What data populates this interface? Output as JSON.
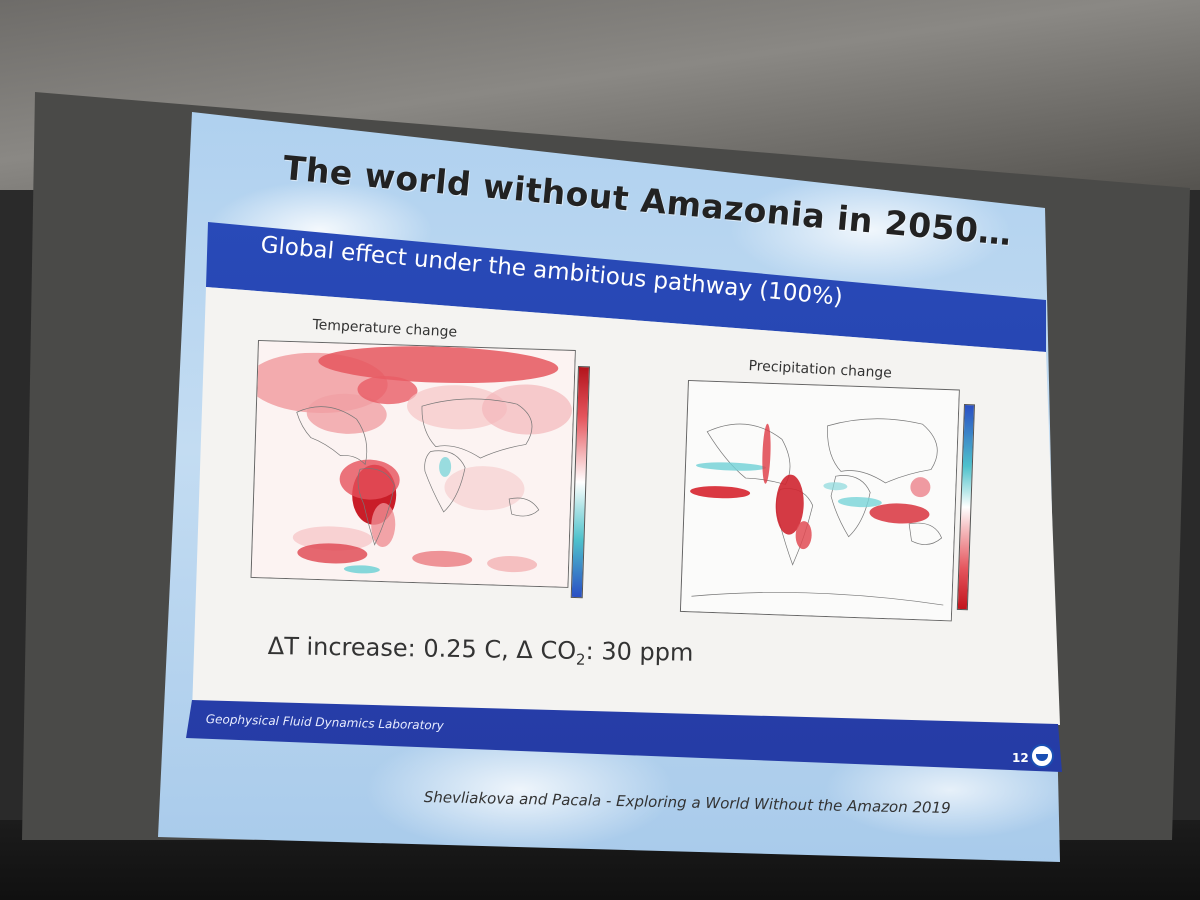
{
  "slide": {
    "title": "The world without Amazonia in 2050…",
    "banner": "Global effect under the ambitious pathway (100%)",
    "left_map": {
      "title": "Temperature change",
      "colorbar_top_color": "#b3141c",
      "colorbar_bottom_color": "#2a4fc4"
    },
    "right_map": {
      "title": "Precipitation change",
      "colorbar_top_color": "#2a4fc4",
      "colorbar_bottom_color": "#c2141c"
    },
    "summary": {
      "prefix": "ΔT increase: 0.25 C, Δ CO",
      "sub": "2",
      "suffix": ": 30 ppm"
    },
    "footer_label": "Geophysical Fluid Dynamics Laboratory",
    "page_number": "12",
    "logo": "noaa-logo",
    "credit": "Shevliakova and Pacala - Exploring a World Without the Amazon 2019"
  }
}
